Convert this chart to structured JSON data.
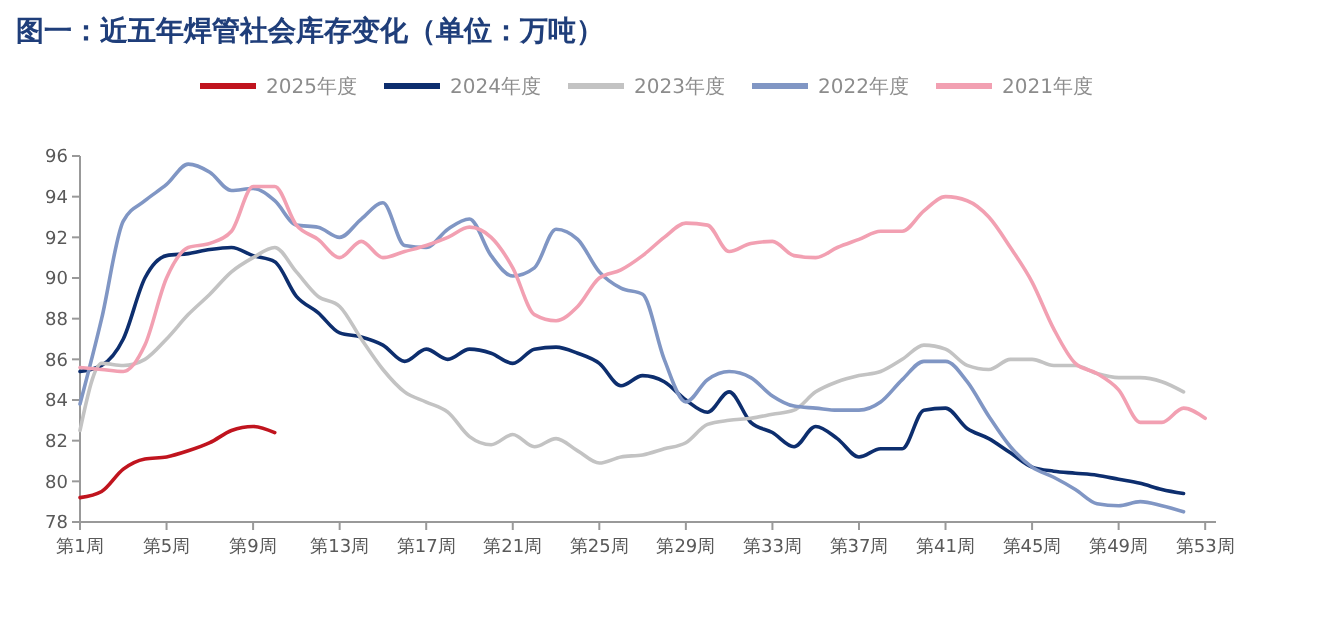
{
  "chart_data": {
    "type": "line",
    "title": "图一：近五年焊管社会库存变化（单位：万吨）",
    "categories": [
      "第1周",
      null,
      null,
      null,
      "第5周",
      null,
      null,
      null,
      "第9周",
      null,
      null,
      null,
      "第13周",
      null,
      null,
      null,
      "第17周",
      null,
      null,
      null,
      "第21周",
      null,
      null,
      null,
      "第25周",
      null,
      null,
      null,
      "第29周",
      null,
      null,
      null,
      "第33周",
      null,
      null,
      null,
      "第37周",
      null,
      null,
      null,
      "第41周",
      null,
      null,
      null,
      "第45周",
      null,
      null,
      null,
      "第49周",
      null,
      null,
      null,
      "第53周"
    ],
    "ylim": [
      78,
      96
    ],
    "yticks": [
      78,
      80,
      82,
      84,
      86,
      88,
      90,
      92,
      94,
      96
    ],
    "grid": false,
    "legend": "top",
    "marker": "none",
    "line_style": "solid",
    "series": [
      {
        "name": "2025年度",
        "color": "#c0141e",
        "values": [
          79.2,
          79.5,
          80.6,
          81.1,
          81.2,
          81.5,
          81.9,
          82.5,
          82.7,
          82.4,
          null,
          null,
          null,
          null,
          null,
          null,
          null,
          null,
          null,
          null,
          null,
          null,
          null,
          null,
          null,
          null,
          null,
          null,
          null,
          null,
          null,
          null,
          null,
          null,
          null,
          null,
          null,
          null,
          null,
          null,
          null,
          null,
          null,
          null,
          null,
          null,
          null,
          null,
          null,
          null,
          null,
          null,
          null
        ]
      },
      {
        "name": "2024年度",
        "color": "#0d2e6e",
        "values": [
          85.4,
          85.7,
          87.0,
          90.0,
          91.1,
          91.2,
          91.4,
          91.5,
          91.1,
          90.8,
          89.1,
          88.3,
          87.3,
          87.1,
          86.7,
          85.9,
          86.5,
          86.0,
          86.5,
          86.3,
          85.8,
          86.5,
          86.6,
          86.3,
          85.8,
          84.7,
          85.2,
          84.9,
          84.0,
          83.4,
          84.4,
          82.9,
          82.4,
          81.7,
          82.7,
          82.1,
          81.2,
          81.6,
          81.6,
          83.5,
          83.6,
          82.6,
          82.1,
          81.4,
          80.7,
          80.5,
          80.4,
          80.3,
          80.1,
          79.9,
          79.6,
          79.4,
          null
        ]
      },
      {
        "name": "2023年度",
        "color": "#c3c3c3",
        "values": [
          82.5,
          85.8,
          85.7,
          86.0,
          87.0,
          88.2,
          89.2,
          90.3,
          91.0,
          91.5,
          90.3,
          89.1,
          88.6,
          87.0,
          85.5,
          84.4,
          83.9,
          83.4,
          82.2,
          81.8,
          82.3,
          81.7,
          82.1,
          81.5,
          80.9,
          81.2,
          81.3,
          81.6,
          81.9,
          82.8,
          83.0,
          83.1,
          83.3,
          83.5,
          84.4,
          84.9,
          85.2,
          85.4,
          86.0,
          86.7,
          86.5,
          85.7,
          85.5,
          86.0,
          86.0,
          85.7,
          85.7,
          85.3,
          85.1,
          85.1,
          84.9,
          84.4,
          null
        ]
      },
      {
        "name": "2022年度",
        "color": "#8096c4",
        "values": [
          83.8,
          88.0,
          92.8,
          93.8,
          94.6,
          95.6,
          95.2,
          94.3,
          94.4,
          93.8,
          92.6,
          92.5,
          92.0,
          92.9,
          93.7,
          91.6,
          91.5,
          92.4,
          92.9,
          91.1,
          90.1,
          90.5,
          92.4,
          91.9,
          90.3,
          89.5,
          89.2,
          86.0,
          83.9,
          85.0,
          85.4,
          85.1,
          84.2,
          83.7,
          83.6,
          83.5,
          83.5,
          83.9,
          85.0,
          85.9,
          85.9,
          84.9,
          83.2,
          81.7,
          80.7,
          80.2,
          79.6,
          78.9,
          78.8,
          79.0,
          78.8,
          78.5,
          null
        ]
      },
      {
        "name": "2021年度",
        "color": "#f2a0b2",
        "values": [
          85.6,
          85.5,
          85.4,
          86.7,
          90.0,
          91.5,
          91.7,
          92.3,
          94.5,
          94.5,
          92.6,
          91.9,
          91.0,
          91.8,
          91.0,
          91.3,
          91.6,
          92.0,
          92.5,
          92.0,
          90.5,
          88.2,
          87.9,
          88.6,
          90.0,
          90.4,
          91.1,
          92.0,
          92.7,
          92.6,
          91.3,
          91.7,
          91.8,
          91.1,
          91.0,
          91.5,
          91.9,
          92.3,
          92.3,
          93.3,
          94.0,
          93.8,
          93.0,
          91.5,
          89.8,
          87.5,
          85.8,
          85.3,
          84.5,
          82.9,
          82.9,
          83.6,
          83.1
        ]
      }
    ]
  }
}
